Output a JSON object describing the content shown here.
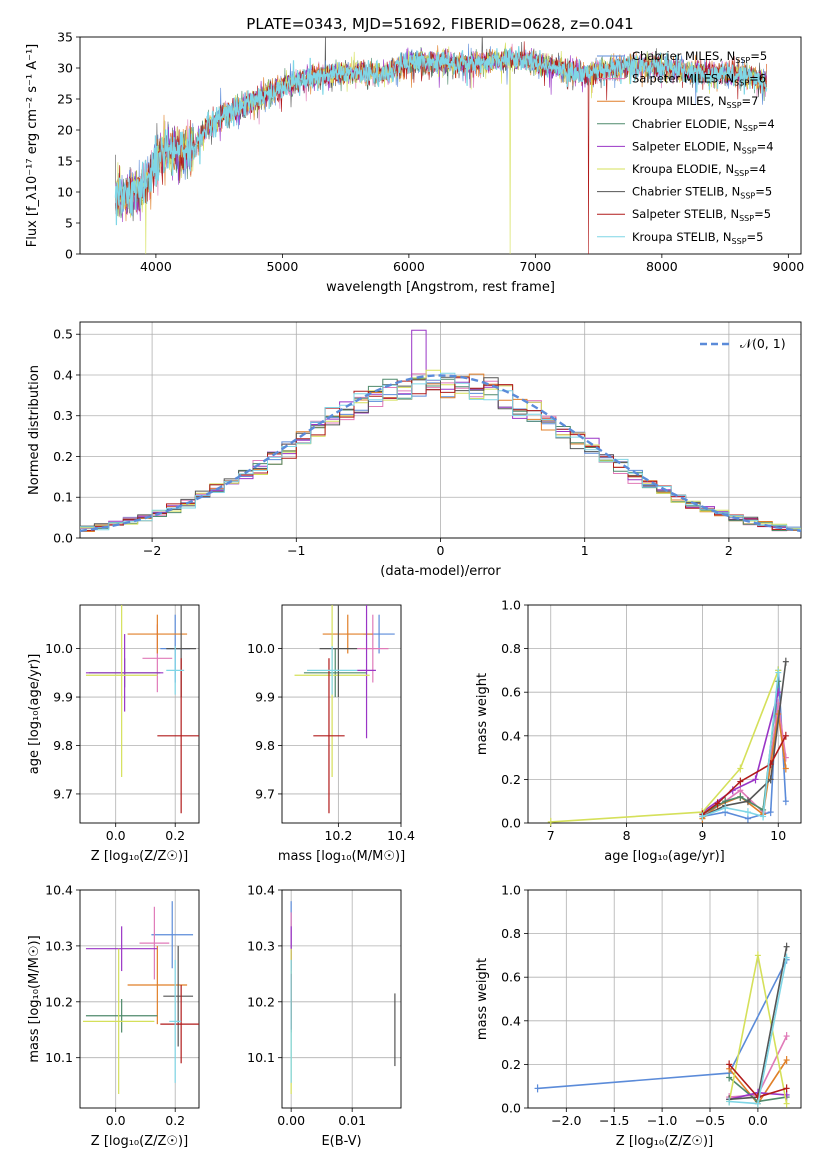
{
  "figure": {
    "title": "PLATE=0343, MJD=51692, FIBERID=0628, z=0.041"
  },
  "series_styles": [
    {
      "name": "Chabrier MILES",
      "nssp": "5",
      "color": "#5b8bd9"
    },
    {
      "name": "Salpeter MILES",
      "nssp": "6",
      "color": "#e07ab8"
    },
    {
      "name": "Kroupa MILES",
      "nssp": "7",
      "color": "#e07f28"
    },
    {
      "name": "Chabrier ELODIE",
      "nssp": "4",
      "color": "#4f8a6b"
    },
    {
      "name": "Salpeter ELODIE",
      "nssp": "4",
      "color": "#9a35c6"
    },
    {
      "name": "Kroupa ELODIE",
      "nssp": "4",
      "color": "#d5e05a"
    },
    {
      "name": "Chabrier STELIB",
      "nssp": "5",
      "color": "#555555"
    },
    {
      "name": "Salpeter STELIB",
      "nssp": "5",
      "color": "#b11a1a"
    },
    {
      "name": "Kroupa STELIB",
      "nssp": "5",
      "color": "#7fd6e6"
    }
  ],
  "chart_data": [
    {
      "id": "spectrum",
      "type": "line",
      "title": "PLATE=0343, MJD=51692, FIBERID=0628, z=0.041",
      "xlabel": "wavelength [Angstrom, rest frame]",
      "ylabel": "Flux [f_λ10⁻¹⁷ erg cm⁻² s⁻¹ A⁻¹]",
      "xlim": [
        3400,
        9100
      ],
      "ylim": [
        0,
        35
      ],
      "xticks": [
        4000,
        5000,
        6000,
        7000,
        8000,
        9000
      ],
      "yticks": [
        0,
        5,
        10,
        15,
        20,
        25,
        30,
        35
      ],
      "legend_position": "top-right",
      "continuum": {
        "x": [
          3680,
          3800,
          3900,
          4000,
          4100,
          4200,
          4300,
          4400,
          4500,
          4600,
          4700,
          4800,
          4900,
          5000,
          5200,
          5400,
          5600,
          5800,
          6000,
          6200,
          6400,
          6600,
          6800,
          7000,
          7200,
          7400,
          7600,
          7800,
          8000,
          8200,
          8400,
          8600,
          8800
        ],
        "y": [
          9,
          10,
          10.5,
          15,
          17,
          16,
          17,
          20.5,
          22,
          23,
          24,
          25,
          26,
          27,
          28.5,
          29,
          29.5,
          29,
          31,
          31,
          30.5,
          31,
          31.5,
          31,
          30,
          29,
          30,
          30.5,
          30,
          29.5,
          29,
          29,
          28
        ]
      }
    },
    {
      "id": "residuals",
      "type": "histogram",
      "xlabel": "(data-model)/error",
      "ylabel": "Normed distribution",
      "xlim": [
        -2.5,
        2.5
      ],
      "ylim": [
        0,
        0.53
      ],
      "xticks": [
        -2,
        -1,
        0,
        1,
        2
      ],
      "yticks": [
        0.0,
        0.1,
        0.2,
        0.3,
        0.4,
        0.5
      ],
      "bin_width": 0.1,
      "legend": "𝒩(0, 1)",
      "legend_position": "top-right",
      "grid": true
    },
    {
      "id": "age_vs_Z",
      "type": "scatter",
      "xlabel": "Z [log₁₀(Z/Z☉)]",
      "ylabel": "age  [log₁₀(age/yr)]",
      "xlim": [
        -0.12,
        0.28
      ],
      "ylim": [
        9.64,
        10.09
      ],
      "xticks": [
        0.0,
        0.2
      ],
      "yticks": [
        9.7,
        9.8,
        9.9,
        10.0
      ],
      "grid": true,
      "points": [
        {
          "x": 0.2,
          "y": 10.0,
          "xerr": 0.05,
          "yerr": 0.07
        },
        {
          "x": 0.14,
          "y": 9.98,
          "xerr": 0.05,
          "yerr": 0.07
        },
        {
          "x": 0.14,
          "y": 10.03,
          "xerr": 0.1,
          "yerr": 0.04
        },
        {
          "x": 0.03,
          "y": 9.95,
          "xerr": 0.12,
          "yerr": 0.03
        },
        {
          "x": 0.03,
          "y": 9.95,
          "xerr": 0.13,
          "yerr": 0.08
        },
        {
          "x": 0.02,
          "y": 9.945,
          "xerr": 0.12,
          "yerr": 0.21
        },
        {
          "x": 0.22,
          "y": 10.0,
          "xerr": 0.05,
          "yerr": 0.1
        },
        {
          "x": 0.22,
          "y": 9.82,
          "xerr": 0.08,
          "yerr": 0.16
        },
        {
          "x": 0.2,
          "y": 9.955,
          "xerr": 0.03,
          "yerr": 0.05
        }
      ]
    },
    {
      "id": "age_vs_mass",
      "type": "scatter",
      "xlabel": "mass [log₁₀(M/M☉)]",
      "ylabel": "",
      "xlim": [
        10.02,
        10.4
      ],
      "ylim": [
        9.64,
        10.09
      ],
      "xticks": [
        10.2,
        10.4
      ],
      "yticks": [
        9.7,
        9.8,
        9.9,
        10.0
      ],
      "grid": true,
      "points": [
        {
          "x": 10.33,
          "y": 10.03,
          "xerr": 0.05,
          "yerr": 0.04
        },
        {
          "x": 10.31,
          "y": 10.0,
          "xerr": 0.05,
          "yerr": 0.07
        },
        {
          "x": 10.23,
          "y": 10.03,
          "xerr": 0.08,
          "yerr": 0.04
        },
        {
          "x": 10.19,
          "y": 9.95,
          "xerr": 0.1,
          "yerr": 0.05
        },
        {
          "x": 10.29,
          "y": 9.955,
          "xerr": 0.03,
          "yerr": 0.14
        },
        {
          "x": 10.18,
          "y": 9.945,
          "xerr": 0.12,
          "yerr": 0.21
        },
        {
          "x": 10.2,
          "y": 10.0,
          "xerr": 0.06,
          "yerr": 0.1
        },
        {
          "x": 10.17,
          "y": 9.82,
          "xerr": 0.05,
          "yerr": 0.16
        },
        {
          "x": 10.18,
          "y": 9.955,
          "xerr": 0.08,
          "yerr": 0.05
        }
      ]
    },
    {
      "id": "weight_vs_age",
      "type": "line",
      "xlabel": "age  [log₁₀(age/yr)]",
      "ylabel": "mass weight",
      "xlim": [
        6.7,
        10.3
      ],
      "ylim": [
        0,
        1.0
      ],
      "xticks": [
        7,
        8,
        9,
        10
      ],
      "yticks": [
        0.0,
        0.2,
        0.4,
        0.6,
        0.8,
        1.0
      ],
      "grid": true,
      "series": [
        {
          "x": [
            9.0,
            9.3,
            9.6,
            9.9,
            10.0,
            10.1
          ],
          "y": [
            0.03,
            0.05,
            0.02,
            0.05,
            0.7,
            0.1
          ]
        },
        {
          "x": [
            9.0,
            9.3,
            9.5,
            9.8,
            10.0,
            10.1
          ],
          "y": [
            0.03,
            0.1,
            0.15,
            0.05,
            0.55,
            0.3
          ]
        },
        {
          "x": [
            9.0,
            9.2,
            9.5,
            9.8,
            10.0,
            10.1
          ],
          "y": [
            0.02,
            0.08,
            0.12,
            0.04,
            0.5,
            0.25
          ]
        },
        {
          "x": [
            9.0,
            9.3,
            9.5,
            9.8,
            10.0
          ],
          "y": [
            0.04,
            0.1,
            0.12,
            0.06,
            0.65
          ]
        },
        {
          "x": [
            9.0,
            9.4,
            9.7,
            10.0
          ],
          "y": [
            0.05,
            0.15,
            0.2,
            0.6
          ]
        },
        {
          "x": [
            7.0,
            9.0,
            9.5,
            10.0
          ],
          "y": [
            0.005,
            0.05,
            0.25,
            0.7
          ]
        },
        {
          "x": [
            9.0,
            9.3,
            9.6,
            9.9,
            10.1
          ],
          "y": [
            0.03,
            0.08,
            0.1,
            0.2,
            0.74
          ]
        },
        {
          "x": [
            9.0,
            9.2,
            9.5,
            9.9,
            10.1
          ],
          "y": [
            0.04,
            0.09,
            0.19,
            0.27,
            0.4
          ]
        },
        {
          "x": [
            9.0,
            9.3,
            9.6,
            9.8,
            10.0
          ],
          "y": [
            0.03,
            0.07,
            0.05,
            0.03,
            0.69
          ]
        }
      ]
    },
    {
      "id": "mass_vs_Z",
      "type": "scatter",
      "xlabel": "Z [log₁₀(Z/Z☉)]",
      "ylabel": "mass [log₁₀(M/M☉)]",
      "xlim": [
        -0.12,
        0.28
      ],
      "ylim": [
        10.01,
        10.4
      ],
      "xticks": [
        0.0,
        0.2
      ],
      "yticks": [
        10.1,
        10.2,
        10.3,
        10.4
      ],
      "grid": true,
      "points": [
        {
          "x": 0.19,
          "y": 10.32,
          "xerr": 0.07,
          "yerr": 0.06
        },
        {
          "x": 0.13,
          "y": 10.305,
          "xerr": 0.05,
          "yerr": 0.065
        },
        {
          "x": 0.14,
          "y": 10.23,
          "xerr": 0.1,
          "yerr": 0.07
        },
        {
          "x": 0.02,
          "y": 10.175,
          "xerr": 0.12,
          "yerr": 0.03
        },
        {
          "x": 0.02,
          "y": 10.295,
          "xerr": 0.12,
          "yerr": 0.04
        },
        {
          "x": 0.01,
          "y": 10.165,
          "xerr": 0.12,
          "yerr": 0.13
        },
        {
          "x": 0.21,
          "y": 10.21,
          "xerr": 0.05,
          "yerr": 0.09
        },
        {
          "x": 0.22,
          "y": 10.16,
          "xerr": 0.07,
          "yerr": 0.07
        },
        {
          "x": 0.2,
          "y": 10.165,
          "xerr": 0.02,
          "yerr": 0.11
        }
      ]
    },
    {
      "id": "mass_vs_EBV",
      "type": "scatter",
      "xlabel": "E(B-V)",
      "ylabel": "",
      "xlim": [
        -0.0015,
        0.018
      ],
      "ylim": [
        10.01,
        10.4
      ],
      "xticks": [
        0.0,
        0.01
      ],
      "yticks": [
        10.1,
        10.2,
        10.3,
        10.4
      ],
      "grid": true,
      "points": [
        {
          "x": 0.0,
          "y": 10.32,
          "xerr": 0,
          "yerr": 0.06
        },
        {
          "x": 0.0,
          "y": 10.3,
          "xerr": 0,
          "yerr": 0.06
        },
        {
          "x": 0.0,
          "y": 10.23,
          "xerr": 0,
          "yerr": 0.06
        },
        {
          "x": 0.0,
          "y": 10.175,
          "xerr": 0,
          "yerr": 0.03
        },
        {
          "x": 0.0,
          "y": 10.295,
          "xerr": 0,
          "yerr": 0.04
        },
        {
          "x": 0.0,
          "y": 10.165,
          "xerr": 0,
          "yerr": 0.13
        },
        {
          "x": 0.017,
          "y": 10.15,
          "xerr": 0,
          "yerr": 0.065
        },
        {
          "x": 0.0,
          "y": 10.2,
          "xerr": 0,
          "yerr": 0.05
        },
        {
          "x": 0.0,
          "y": 10.165,
          "xerr": 0,
          "yerr": 0.11
        }
      ]
    },
    {
      "id": "weight_vs_Z",
      "type": "line",
      "xlabel": "Z [log₁₀(Z/Z☉)]",
      "ylabel": "mass weight",
      "xlim": [
        -2.4,
        0.45
      ],
      "ylim": [
        0,
        1.0
      ],
      "xticks": [
        -2.0,
        -1.5,
        -1.0,
        -0.5,
        0.0
      ],
      "yticks": [
        0.0,
        0.2,
        0.4,
        0.6,
        0.8,
        1.0
      ],
      "grid": true,
      "series": [
        {
          "x": [
            -2.3,
            -0.3,
            0.3
          ],
          "y": [
            0.09,
            0.16,
            0.68
          ]
        },
        {
          "x": [
            -0.3,
            0.0,
            0.3
          ],
          "y": [
            0.05,
            0.06,
            0.33
          ]
        },
        {
          "x": [
            -0.3,
            0.0,
            0.3
          ],
          "y": [
            0.18,
            0.02,
            0.22
          ]
        },
        {
          "x": [
            -0.3,
            0.0,
            0.3
          ],
          "y": [
            0.14,
            0.03,
            0.05
          ]
        },
        {
          "x": [
            -0.3,
            0.0,
            0.3
          ],
          "y": [
            0.04,
            0.07,
            0.06
          ]
        },
        {
          "x": [
            -0.3,
            0.0,
            0.3
          ],
          "y": [
            0.03,
            0.7,
            0.02
          ]
        },
        {
          "x": [
            -0.3,
            0.0,
            0.3
          ],
          "y": [
            0.04,
            0.05,
            0.74
          ]
        },
        {
          "x": [
            -0.3,
            0.0,
            0.3
          ],
          "y": [
            0.2,
            0.05,
            0.09
          ]
        },
        {
          "x": [
            -0.3,
            0.0,
            0.3
          ],
          "y": [
            0.03,
            0.02,
            0.69
          ]
        }
      ]
    }
  ]
}
